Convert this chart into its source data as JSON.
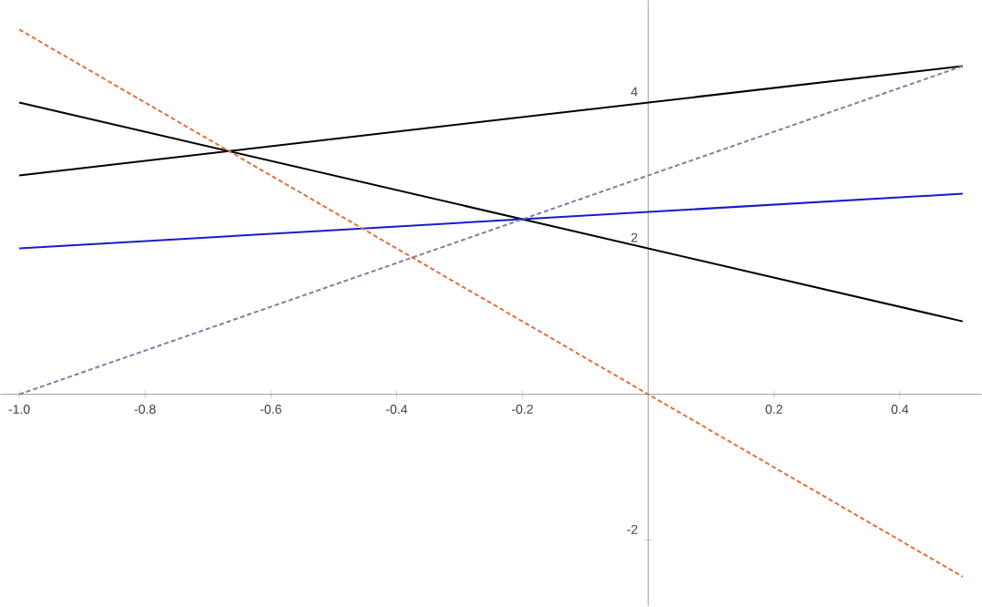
{
  "chart_data": {
    "type": "line",
    "xlim": [
      -1.03,
      0.53
    ],
    "ylim": [
      -2.9,
      5.4
    ],
    "xticks": [
      {
        "value": -1,
        "label": "-1.0"
      },
      {
        "value": -0.8,
        "label": "-0.8"
      },
      {
        "value": -0.6,
        "label": "-0.6"
      },
      {
        "value": -0.4,
        "label": "-0.4"
      },
      {
        "value": -0.2,
        "label": "-0.2"
      },
      {
        "value": 0.2,
        "label": "0.2"
      },
      {
        "value": 0.4,
        "label": "0.4"
      }
    ],
    "yticks": [
      -2,
      2,
      4
    ],
    "grid": false,
    "marker": "none",
    "x": [
      -1,
      0.5
    ],
    "series": [
      {
        "color": "#000000",
        "line_style": "solid",
        "values": [
          3,
          4.5
        ]
      },
      {
        "color": "#000000",
        "line_style": "solid",
        "values": [
          4,
          1
        ]
      },
      {
        "color": "#1a1acc",
        "line_style": "solid",
        "values": [
          2,
          2.75
        ]
      },
      {
        "color": "#7f7fa3",
        "line_style": "dashed",
        "values": [
          0,
          4.5
        ]
      },
      {
        "color": "#e0703c",
        "line_style": "dashed",
        "values": [
          5,
          -2.5
        ]
      }
    ]
  }
}
